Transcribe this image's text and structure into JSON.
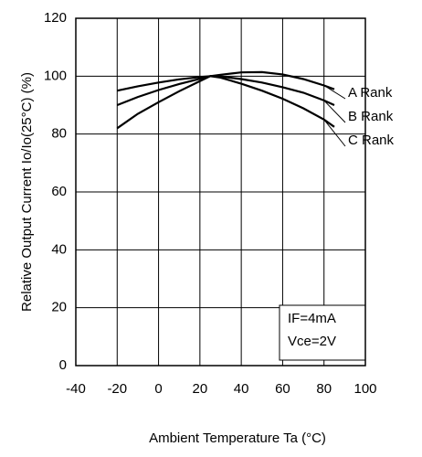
{
  "chart_data": {
    "type": "line",
    "x_label": "Ambient Temperature  Ta (°C)",
    "y_label": "Relative Output Current  Io/Io(25°C) (%)",
    "x": [
      -20,
      -10,
      0,
      10,
      20,
      25,
      30,
      40,
      50,
      60,
      70,
      80,
      85
    ],
    "series": [
      {
        "name": "A Rank",
        "color": "#000000",
        "values": [
          95,
          96.5,
          97.8,
          98.9,
          99.7,
          100,
          100.5,
          101.3,
          101.4,
          100.6,
          99,
          96.8,
          95.5
        ]
      },
      {
        "name": "B Rank",
        "color": "#000000",
        "values": [
          90,
          92.8,
          95.2,
          97.3,
          99.1,
          100,
          99.9,
          99,
          97.8,
          96.2,
          94.3,
          91.6,
          90
        ]
      },
      {
        "name": "C Rank",
        "color": "#000000",
        "values": [
          82,
          87,
          91,
          94.8,
          98.3,
          100,
          99.5,
          97.4,
          95,
          92.2,
          88.9,
          85,
          82.5
        ]
      }
    ],
    "annotations": [
      "IF=4mA",
      "Vce=2V"
    ],
    "xlim": [
      -40,
      100
    ],
    "xticks": [
      -40,
      -20,
      0,
      20,
      40,
      60,
      80,
      100
    ],
    "ylim": [
      0,
      120
    ],
    "yticks": [
      0,
      20,
      40,
      60,
      80,
      100,
      120
    ],
    "grid": true
  }
}
